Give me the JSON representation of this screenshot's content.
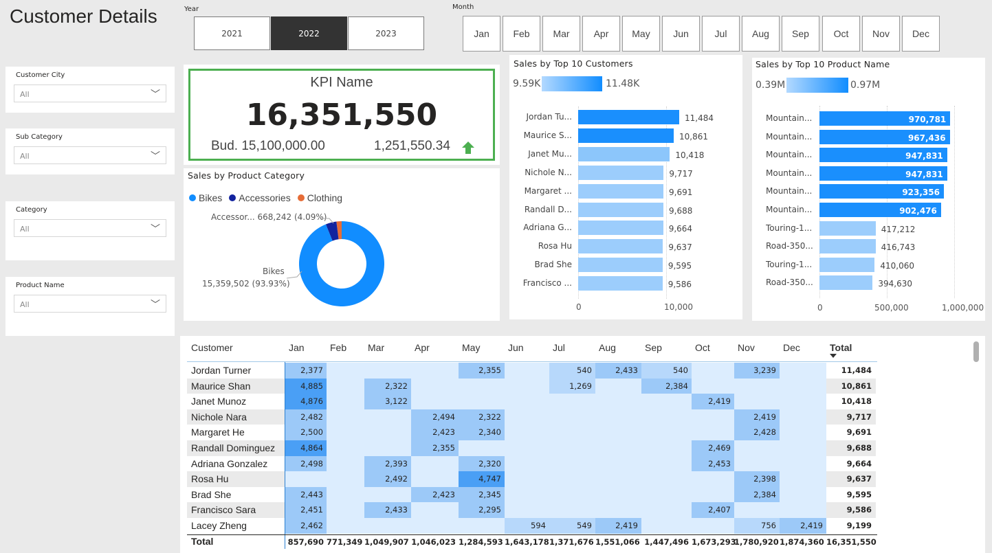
{
  "page_title": "Customer Details",
  "year_slicer": {
    "label": "Year",
    "options": [
      "2021",
      "2022",
      "2023"
    ],
    "selected": "2022"
  },
  "month_slicer": {
    "label": "Month",
    "options": [
      "Jan",
      "Feb",
      "Mar",
      "Apr",
      "May",
      "Jun",
      "Jul",
      "Aug",
      "Sep",
      "Oct",
      "Nov",
      "Dec"
    ]
  },
  "filters": [
    {
      "label": "Customer City",
      "value": "All"
    },
    {
      "label": "Sub Category",
      "value": "All"
    },
    {
      "label": "Category",
      "value": "All"
    },
    {
      "label": "Product Name",
      "value": "All"
    }
  ],
  "kpi": {
    "name": "KPI Name",
    "value": "16,351,550",
    "budget": "Bud. 15,100,000.00",
    "variance": "1,251,550.34",
    "border_color": "#4caf50",
    "arrow_color": "#4caf50"
  },
  "donut": {
    "title": "Sales by Product Category",
    "legend": [
      {
        "name": "Bikes",
        "color": "#118dff"
      },
      {
        "name": "Accessories",
        "color": "#12239e"
      },
      {
        "name": "Clothing",
        "color": "#e66c37"
      }
    ],
    "label_accessories": "Accessor... 668,242 (4.09%)",
    "label_bikes_name": "Bikes",
    "label_bikes_value": "15,359,502 (93.93%)"
  },
  "top_customers": {
    "title": "Sales by Top 10 Customers",
    "legend_min": "9.59K",
    "legend_max": "11.48K",
    "axis_ticks": [
      "0",
      "10,000"
    ]
  },
  "top_products": {
    "title": "Sales by Top 10 Product Name",
    "legend_min": "0.39M",
    "legend_max": "0.97M",
    "axis_ticks": [
      "0",
      "500,000",
      "1,000,000"
    ]
  },
  "chart_data": [
    {
      "type": "bar",
      "title": "Sales by Top 10 Customers",
      "categories": [
        "Jordan Tu...",
        "Maurice S...",
        "Janet Mu...",
        "Nichole N...",
        "Margaret ...",
        "Randall D...",
        "Adriana G...",
        "Rosa Hu",
        "Brad She",
        "Francisco ..."
      ],
      "values": [
        11484,
        10861,
        10418,
        9717,
        9691,
        9688,
        9664,
        9637,
        9595,
        9586
      ],
      "value_labels": [
        "11,484",
        "10,861",
        "10,418",
        "9,717",
        "9,691",
        "9,688",
        "9,664",
        "9,637",
        "9,595",
        "9,586"
      ],
      "xlim": [
        0,
        14000
      ]
    },
    {
      "type": "bar",
      "title": "Sales by Top 10 Product Name",
      "categories": [
        "Mountain...",
        "Mountain...",
        "Mountain...",
        "Mountain...",
        "Mountain...",
        "Mountain...",
        "Touring-1...",
        "Road-350...",
        "Touring-1...",
        "Road-350..."
      ],
      "values": [
        970781,
        967436,
        947831,
        947831,
        923356,
        902476,
        417212,
        416743,
        410060,
        394630
      ],
      "value_labels": [
        "970,781",
        "967,436",
        "947,831",
        "947,831",
        "923,356",
        "902,476",
        "417,212",
        "416,743",
        "410,060",
        "394,630"
      ],
      "xlim": [
        0,
        1000000
      ]
    },
    {
      "type": "pie",
      "title": "Sales by Product Category",
      "categories": [
        "Bikes",
        "Accessories",
        "Clothing"
      ],
      "values": [
        15359502,
        668242,
        323806
      ]
    }
  ],
  "matrix": {
    "columns": [
      "Customer",
      "Jan",
      "Feb",
      "Mar",
      "Apr",
      "May",
      "Jun",
      "Jul",
      "Aug",
      "Sep",
      "Oct",
      "Nov",
      "Dec",
      "Total"
    ],
    "rows": [
      {
        "name": "Jordan Turner",
        "cells": [
          "2,377",
          "",
          "",
          "",
          "2,355",
          "",
          "540",
          "2,433",
          "540",
          "",
          "3,239",
          ""
        ],
        "total": "11,484"
      },
      {
        "name": "Maurice Shan",
        "cells": [
          "4,885",
          "",
          "2,322",
          "",
          "",
          "",
          "1,269",
          "",
          "2,384",
          "",
          "",
          ""
        ],
        "total": "10,861"
      },
      {
        "name": "Janet Munoz",
        "cells": [
          "4,876",
          "",
          "3,122",
          "",
          "",
          "",
          "",
          "",
          "",
          "2,419",
          "",
          ""
        ],
        "total": "10,418"
      },
      {
        "name": "Nichole Nara",
        "cells": [
          "2,482",
          "",
          "",
          "2,494",
          "2,322",
          "",
          "",
          "",
          "",
          "",
          "2,419",
          ""
        ],
        "total": "9,717"
      },
      {
        "name": "Margaret He",
        "cells": [
          "2,500",
          "",
          "",
          "2,423",
          "2,340",
          "",
          "",
          "",
          "",
          "",
          "2,428",
          ""
        ],
        "total": "9,691"
      },
      {
        "name": "Randall Dominguez",
        "cells": [
          "4,864",
          "",
          "",
          "2,355",
          "",
          "",
          "",
          "",
          "",
          "2,469",
          "",
          ""
        ],
        "total": "9,688"
      },
      {
        "name": "Adriana Gonzalez",
        "cells": [
          "2,498",
          "",
          "2,393",
          "",
          "2,320",
          "",
          "",
          "",
          "",
          "2,453",
          "",
          ""
        ],
        "total": "9,664"
      },
      {
        "name": "Rosa Hu",
        "cells": [
          "",
          "",
          "2,492",
          "",
          "4,747",
          "",
          "",
          "",
          "",
          "",
          "2,398",
          ""
        ],
        "total": "9,637"
      },
      {
        "name": "Brad She",
        "cells": [
          "2,443",
          "",
          "",
          "2,423",
          "2,345",
          "",
          "",
          "",
          "",
          "",
          "2,384",
          ""
        ],
        "total": "9,595"
      },
      {
        "name": "Francisco Sara",
        "cells": [
          "2,451",
          "",
          "2,433",
          "",
          "2,295",
          "",
          "",
          "",
          "",
          "2,407",
          "",
          ""
        ],
        "total": "9,586"
      },
      {
        "name": "Lacey Zheng",
        "cells": [
          "2,462",
          "",
          "",
          "",
          "",
          "594",
          "549",
          "2,419",
          "",
          "",
          "756",
          "2,419"
        ],
        "total": "9,199"
      }
    ],
    "total_row": {
      "name": "Total",
      "cells": [
        "857,690",
        "771,349",
        "1,049,907",
        "1,046,023",
        "1,284,593",
        "1,643,178",
        "1,371,676",
        "1,551,066",
        "1,447,496",
        "1,673,293",
        "1,780,920",
        "1,874,360"
      ],
      "total": "16,351,550"
    }
  }
}
